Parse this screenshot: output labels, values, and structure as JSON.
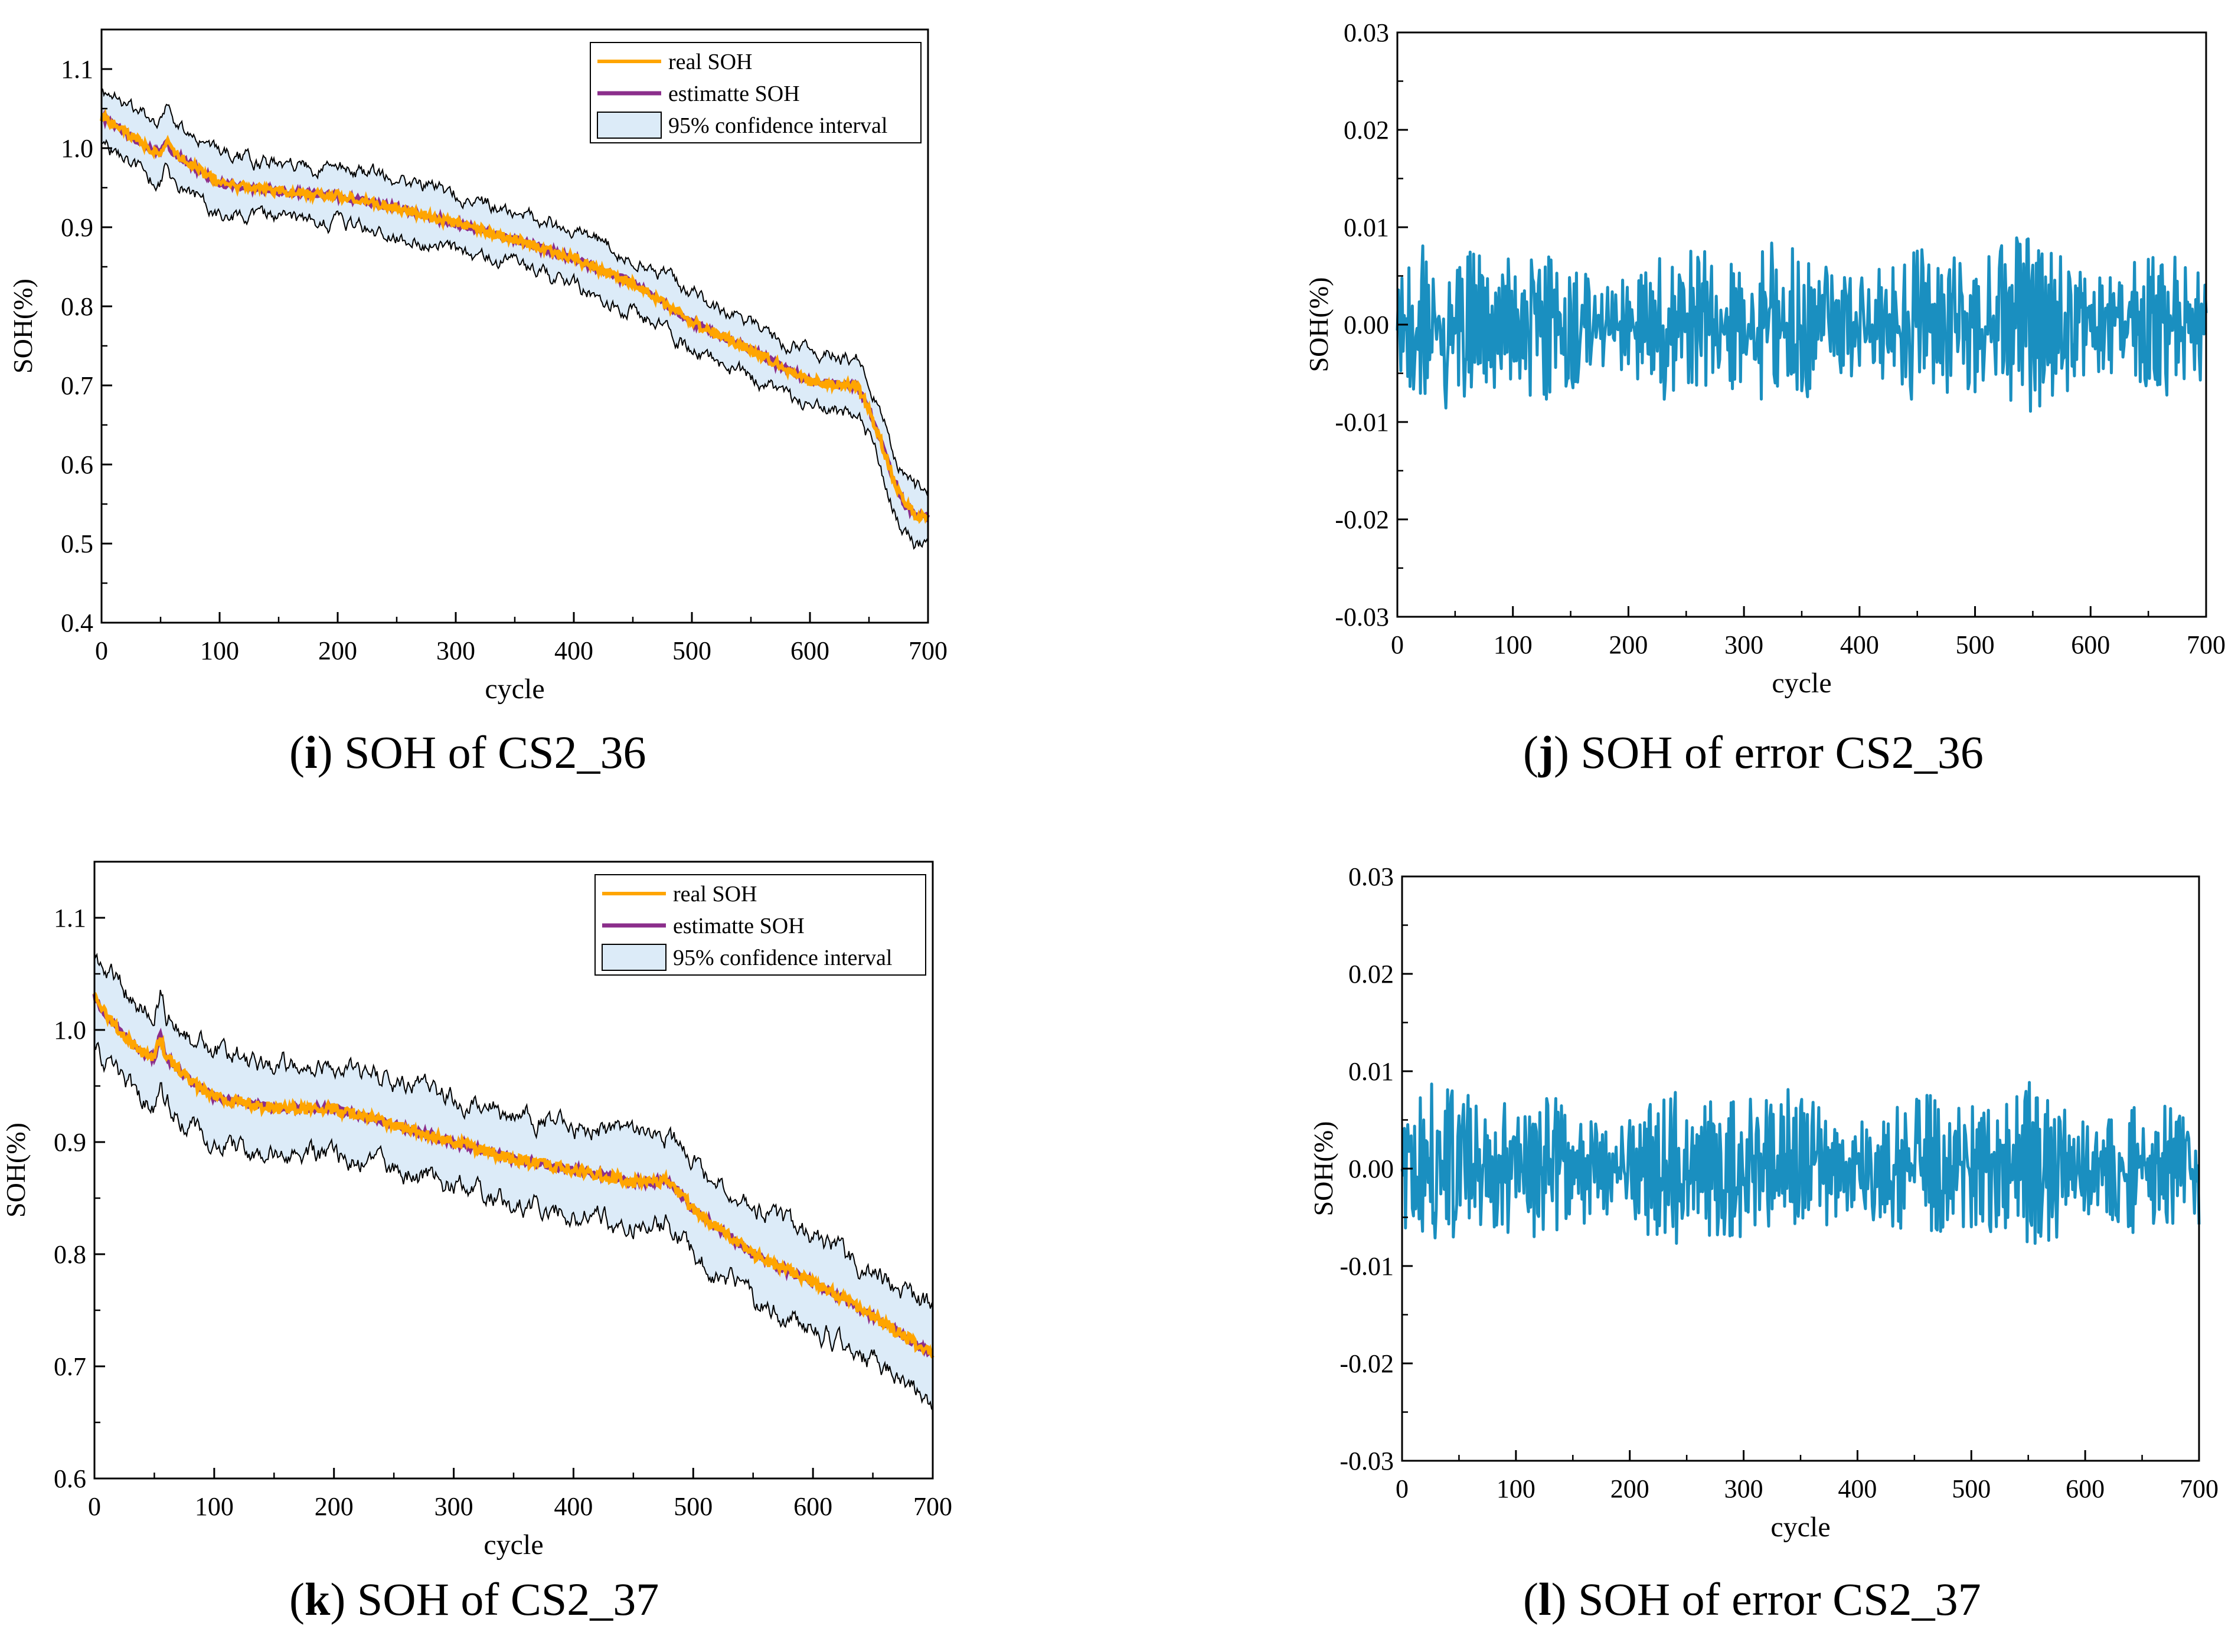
{
  "chart_data": [
    {
      "id": "i",
      "type": "line",
      "title": "",
      "xlabel": "cycle",
      "ylabel": "SOH(%)",
      "xlim": [
        0,
        700
      ],
      "ylim": [
        0.4,
        1.15
      ],
      "xticks": [
        0,
        100,
        200,
        300,
        400,
        500,
        600,
        700
      ],
      "xtick_labels": [
        "0",
        "100",
        "200",
        "300",
        "400",
        "500",
        "600",
        "700"
      ],
      "yticks": [
        0.4,
        0.5,
        0.6,
        0.7,
        0.8,
        0.9,
        1.0,
        1.1
      ],
      "ytick_labels": [
        "0.4",
        "0.5",
        "0.6",
        "0.7",
        "0.8",
        "0.9",
        "1.0",
        "1.1"
      ],
      "legend": [
        "real SOH",
        "estimatte SOH",
        "95% confidence interval"
      ],
      "legend_position": "top-right",
      "trend_knots": {
        "x": [
          0,
          5,
          20,
          40,
          50,
          55,
          60,
          80,
          100,
          150,
          200,
          250,
          300,
          350,
          400,
          450,
          500,
          550,
          600,
          640,
          650,
          660,
          670,
          680,
          690,
          700
        ],
        "y": [
          1.04,
          1.035,
          1.02,
          1.0,
          0.995,
          1.01,
          0.995,
          0.975,
          0.955,
          0.945,
          0.94,
          0.925,
          0.905,
          0.885,
          0.86,
          0.83,
          0.78,
          0.745,
          0.705,
          0.7,
          0.67,
          0.63,
          0.585,
          0.55,
          0.535,
          0.535
        ]
      },
      "noise_amplitude": 0.006,
      "band_half_width": 0.035,
      "series": [
        {
          "name": "real SOH",
          "color": "#FFA500"
        },
        {
          "name": "estimatte SOH",
          "color": "#8B2E8B"
        },
        {
          "name": "95% confidence interval",
          "color": "#DCEBF8"
        }
      ],
      "caption": {
        "letter": "i",
        "text": " SOH of CS2_36"
      }
    },
    {
      "id": "j",
      "type": "line",
      "title": "",
      "xlabel": "cycle",
      "ylabel": "SOH(%)",
      "xlim": [
        0,
        700
      ],
      "ylim": [
        -0.03,
        0.03
      ],
      "xticks": [
        0,
        100,
        200,
        300,
        400,
        500,
        600,
        700
      ],
      "xtick_labels": [
        "0",
        "100",
        "200",
        "300",
        "400",
        "500",
        "600",
        "700"
      ],
      "yticks": [
        -0.03,
        -0.02,
        -0.01,
        0.0,
        0.01,
        0.02,
        0.03
      ],
      "ytick_labels": [
        "-0.03",
        "-0.02",
        "-0.01",
        "0.00",
        "0.01",
        "0.02",
        "0.03"
      ],
      "error_range": [
        -0.0095,
        0.0095
      ],
      "series": [
        {
          "name": "SOH error",
          "color": "#1A8FC0"
        }
      ],
      "caption": {
        "letter": "j",
        "text": " SOH of error CS2_36"
      }
    },
    {
      "id": "k",
      "type": "line",
      "title": "",
      "xlabel": "cycle",
      "ylabel": "SOH(%)",
      "xlim": [
        0,
        700
      ],
      "ylim": [
        0.6,
        1.15
      ],
      "xticks": [
        0,
        100,
        200,
        300,
        400,
        500,
        600,
        700
      ],
      "xtick_labels": [
        "0",
        "100",
        "200",
        "300",
        "400",
        "500",
        "600",
        "700"
      ],
      "yticks": [
        0.6,
        0.7,
        0.8,
        0.9,
        1.0,
        1.1
      ],
      "ytick_labels": [
        "0.6",
        "0.7",
        "0.8",
        "0.9",
        "1.0",
        "1.1"
      ],
      "legend": [
        "real SOH",
        "estimatte SOH",
        "95% confidence interval"
      ],
      "legend_position": "top-right",
      "trend_knots": {
        "x": [
          0,
          5,
          20,
          40,
          50,
          55,
          60,
          80,
          100,
          150,
          200,
          250,
          300,
          350,
          400,
          450,
          480,
          500,
          550,
          600,
          650,
          700
        ],
        "y": [
          1.03,
          1.02,
          1.0,
          0.98,
          0.975,
          0.995,
          0.975,
          0.955,
          0.94,
          0.93,
          0.93,
          0.915,
          0.9,
          0.885,
          0.875,
          0.865,
          0.865,
          0.84,
          0.8,
          0.775,
          0.745,
          0.71
        ]
      },
      "noise_amplitude": 0.005,
      "band_half_width": 0.04,
      "series": [
        {
          "name": "real SOH",
          "color": "#FFA500"
        },
        {
          "name": "estimatte SOH",
          "color": "#8B2E8B"
        },
        {
          "name": "95% confidence interval",
          "color": "#DCEBF8"
        }
      ],
      "caption": {
        "letter": "k",
        "text": " SOH of CS2_37"
      }
    },
    {
      "id": "l",
      "type": "line",
      "title": "",
      "xlabel": "cycle",
      "ylabel": "SOH(%)",
      "xlim": [
        0,
        700
      ],
      "ylim": [
        -0.03,
        0.03
      ],
      "xticks": [
        0,
        100,
        200,
        300,
        400,
        500,
        600,
        700
      ],
      "xtick_labels": [
        "0",
        "100",
        "200",
        "300",
        "400",
        "500",
        "600",
        "700"
      ],
      "yticks": [
        -0.03,
        -0.02,
        -0.01,
        0.0,
        0.01,
        0.02,
        0.03
      ],
      "ytick_labels": [
        "-0.03",
        "-0.02",
        "-0.01",
        "0.00",
        "0.01",
        "0.02",
        "0.03"
      ],
      "error_range": [
        -0.0093,
        0.0093
      ],
      "series": [
        {
          "name": "SOH error",
          "color": "#1A8FC0"
        }
      ],
      "caption": {
        "letter": "l",
        "text": " SOH of error CS2_37"
      }
    }
  ]
}
